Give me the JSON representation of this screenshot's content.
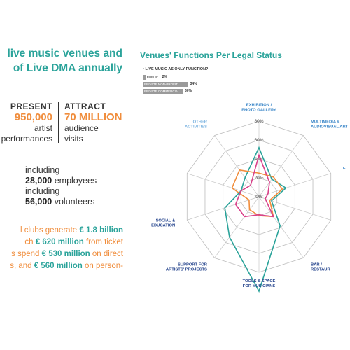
{
  "left": {
    "title_line1": "live music venues and",
    "title_line2": "of Live DMA annually",
    "present_head": "PRESENT",
    "present_num": "950,000",
    "present_sub1": "artist",
    "present_sub2": "performances",
    "attract_head": "ATTRACT",
    "attract_num": "70 MILLION",
    "attract_sub1": "audience",
    "attract_sub2": "visits",
    "including1": "including",
    "employees_num": "28,000",
    "employees_word": "employees",
    "including2": "including",
    "volunteers_num": "56,000",
    "volunteers_word": "volunteers",
    "p1a": "l clubs generate ",
    "p1b": "€ 1.8 billion",
    "p2a": "ch ",
    "p2b": "€ 620 million",
    "p2c": " from ticket",
    "p3a": "s spend ",
    "p3b": "€ 530 million",
    "p3c": " on direct",
    "p4a": "s, and ",
    "p4b": "€ 560 million",
    "p4c": " on person-"
  },
  "legal_status": {
    "title": "Venues' Functions Per Legal Status",
    "question": "• LIVE MUSIC AS ONLY FUNCTION?",
    "bars": [
      {
        "label": "PUBLIC",
        "value": 2,
        "display": "2%"
      },
      {
        "label": "PRIVATE NON-PROFIT",
        "value": 34,
        "display": "34%"
      },
      {
        "label": "PRIVATE COMMERCIAL",
        "value": 30,
        "display": "30%"
      }
    ]
  },
  "chart_data": {
    "type": "radar",
    "axes": [
      "EXHIBITION / PHOTO GALLERY",
      "MULTIMEDIA & AUDIOVISUAL ART",
      "E…",
      "",
      "BAR / RESTAU…",
      "TOOLS & SPACE FOR MUSICIANS",
      "SUPPORT FOR ARTISTS' PROJECTS",
      "SOCIAL & EDUCATION",
      "",
      "OTHER ACTIVITIES"
    ],
    "axis_label_lines": [
      [
        "EXHIBITION /",
        "PHOTO GALLERY"
      ],
      [
        "MULTIMEDIA &",
        "AUDIOVISUAL ART"
      ],
      [
        "E"
      ],
      [],
      [
        "BAR /",
        "RESTAUR"
      ],
      [
        "TOOLS & SPACE",
        "FOR MUSICIANS"
      ],
      [
        "SUPPORT FOR",
        "ARTISTS' PROJECTS"
      ],
      [
        "SOCIAL &",
        "EDUCATION"
      ],
      [],
      [
        "OTHER",
        "ACTIVITIES"
      ]
    ],
    "axis_label_colors": [
      "#3a86c8",
      "#3a86c8",
      "#3a86c8",
      "",
      "#1f3f8a",
      "#1f3f8a",
      "#1f3f8a",
      "#1f3f8a",
      "",
      "#7bb3e0"
    ],
    "ticks": [
      "0%",
      "20%",
      "40%",
      "60%",
      "80%"
    ],
    "rlim": [
      0,
      80
    ],
    "series": [
      {
        "color": "#2aa39a",
        "values": [
          52,
          23,
          30,
          14,
          38,
          100,
          53,
          38,
          20,
          25
        ]
      },
      {
        "color": "#f08d3c",
        "values": [
          25,
          26,
          26,
          12,
          26,
          20,
          17,
          11,
          30,
          35
        ]
      },
      {
        "color": "#d9418a",
        "values": [
          44,
          19,
          10,
          7,
          26,
          19,
          26,
          26,
          20,
          15
        ]
      }
    ]
  }
}
